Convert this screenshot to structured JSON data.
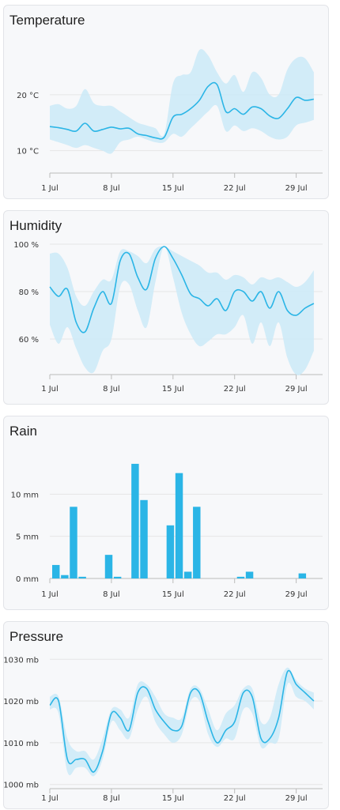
{
  "colors": {
    "line": "#2bb5e6",
    "band": "#cdeaf7",
    "bar": "#2bb5e6",
    "grid": "#e6e6e6",
    "axis": "#bbbbbb"
  },
  "x_ticks": [
    "1 Jul",
    "8 Jul",
    "15 Jul",
    "22 Jul",
    "29 Jul"
  ],
  "chart_data": [
    {
      "id": "temperature",
      "type": "area",
      "title": "Temperature",
      "ylim": [
        6,
        30
      ],
      "yticks": [
        {
          "v": 10,
          "label": "10 °C"
        },
        {
          "v": 20,
          "label": "20 °C"
        }
      ],
      "x": [
        1,
        2,
        3,
        4,
        5,
        6,
        7,
        8,
        9,
        10,
        11,
        12,
        13,
        14,
        15,
        16,
        17,
        18,
        19,
        20,
        21,
        22,
        23,
        24,
        25,
        26,
        27,
        28,
        29,
        30,
        31
      ],
      "series": [
        {
          "role": "mean",
          "values": [
            14.3,
            14.1,
            13.8,
            13.5,
            14.9,
            13.5,
            13.8,
            14.2,
            13.9,
            14.0,
            13.0,
            12.7,
            12.3,
            12.4,
            16.0,
            16.5,
            17.5,
            19.0,
            21.5,
            21.8,
            17.0,
            17.5,
            16.5,
            17.8,
            17.5,
            16.2,
            15.8,
            17.5,
            19.5,
            19.0,
            19.2
          ]
        },
        {
          "role": "high",
          "values": [
            18.0,
            18.3,
            17.5,
            18.0,
            21.0,
            18.5,
            18.0,
            18.0,
            17.0,
            16.0,
            15.0,
            14.5,
            14.0,
            13.0,
            22.0,
            23.5,
            24.0,
            28.0,
            27.0,
            24.0,
            22.0,
            23.5,
            20.5,
            24.0,
            23.0,
            20.0,
            20.0,
            24.5,
            26.5,
            26.5,
            24.0
          ]
        },
        {
          "role": "low",
          "values": [
            12.0,
            11.5,
            11.0,
            10.5,
            11.0,
            10.5,
            10.0,
            9.5,
            11.5,
            12.0,
            12.5,
            12.0,
            11.5,
            11.5,
            13.0,
            12.5,
            14.0,
            15.5,
            17.0,
            18.0,
            13.5,
            14.5,
            13.5,
            14.0,
            13.5,
            12.5,
            12.0,
            12.5,
            14.5,
            15.0,
            15.5
          ]
        }
      ]
    },
    {
      "id": "humidity",
      "type": "area",
      "title": "Humidity",
      "ylim": [
        45,
        100
      ],
      "yticks": [
        {
          "v": 60,
          "label": "60 %"
        },
        {
          "v": 80,
          "label": "80 %"
        },
        {
          "v": 100,
          "label": "100 %"
        }
      ],
      "x": [
        1,
        2,
        3,
        4,
        5,
        6,
        7,
        8,
        9,
        10,
        11,
        12,
        13,
        14,
        15,
        16,
        17,
        18,
        19,
        20,
        21,
        22,
        23,
        24,
        25,
        26,
        27,
        28,
        29,
        30,
        31
      ],
      "series": [
        {
          "role": "mean",
          "values": [
            82,
            78,
            81,
            67,
            63,
            73,
            80,
            75,
            93,
            96,
            86,
            81,
            94,
            99,
            94,
            87,
            79,
            77,
            74,
            77,
            72,
            80,
            80,
            76,
            80,
            73,
            80,
            72,
            70,
            73,
            75
          ]
        },
        {
          "role": "high",
          "values": [
            96,
            96,
            90,
            78,
            74,
            80,
            85,
            85,
            97,
            97,
            95,
            92,
            98,
            99,
            97,
            95,
            93,
            91,
            88,
            88,
            85,
            87,
            86,
            83,
            86,
            85,
            86,
            84,
            82,
            84,
            89
          ]
        },
        {
          "role": "low",
          "values": [
            66,
            58,
            65,
            56,
            48,
            46,
            55,
            60,
            82,
            83,
            72,
            65,
            84,
            99,
            86,
            71,
            62,
            57,
            59,
            62,
            62,
            65,
            70,
            58,
            67,
            57,
            67,
            52,
            45,
            47,
            55
          ]
        }
      ]
    },
    {
      "id": "rain",
      "type": "bar",
      "title": "Rain",
      "ylim": [
        0,
        15
      ],
      "yticks": [
        {
          "v": 0,
          "label": "0 mm"
        },
        {
          "v": 5,
          "label": "5 mm"
        },
        {
          "v": 10,
          "label": "10 mm"
        }
      ],
      "x": [
        1,
        2,
        3,
        4,
        5,
        6,
        7,
        8,
        9,
        10,
        11,
        12,
        13,
        14,
        15,
        16,
        17,
        18,
        19,
        20,
        21,
        22,
        23,
        24,
        25,
        26,
        27,
        28,
        29,
        30,
        31
      ],
      "values": [
        1.6,
        0.4,
        8.5,
        0.2,
        0,
        0,
        2.8,
        0.2,
        0,
        13.6,
        9.3,
        0,
        0,
        6.3,
        12.5,
        0.8,
        8.5,
        0,
        0,
        0,
        0,
        0.2,
        0.8,
        0,
        0,
        0,
        0,
        0,
        0.6,
        0,
        0
      ]
    },
    {
      "id": "pressure",
      "type": "area",
      "title": "Pressure",
      "ylim": [
        999,
        1031
      ],
      "yticks": [
        {
          "v": 1000,
          "label": "1000 mb"
        },
        {
          "v": 1010,
          "label": "1010 mb"
        },
        {
          "v": 1020,
          "label": "1020 mb"
        },
        {
          "v": 1030,
          "label": "1030 mb"
        }
      ],
      "x": [
        1,
        2,
        3,
        4,
        5,
        6,
        7,
        8,
        9,
        10,
        11,
        12,
        13,
        14,
        15,
        16,
        17,
        18,
        19,
        20,
        21,
        22,
        23,
        24,
        25,
        26,
        27,
        28,
        29,
        30,
        31
      ],
      "series": [
        {
          "role": "mean",
          "values": [
            1019,
            1020,
            1006,
            1006,
            1006,
            1003,
            1008,
            1017,
            1016,
            1013,
            1022,
            1023,
            1018,
            1015,
            1013,
            1014,
            1022,
            1022,
            1015,
            1010,
            1013,
            1015,
            1022,
            1021,
            1011,
            1011,
            1016,
            1027,
            1024,
            1022,
            1020
          ]
        },
        {
          "role": "high",
          "values": [
            1021,
            1021,
            1011,
            1008,
            1008,
            1006,
            1011,
            1018,
            1018,
            1016,
            1024,
            1024,
            1021,
            1017,
            1016,
            1016,
            1023,
            1023,
            1018,
            1013,
            1017,
            1019,
            1023,
            1023,
            1015,
            1016,
            1024,
            1028,
            1025,
            1023,
            1022
          ]
        },
        {
          "role": "low",
          "values": [
            1018,
            1017,
            1003,
            1004,
            1004,
            1002,
            1006,
            1015,
            1013,
            1011,
            1018,
            1021,
            1015,
            1012,
            1010,
            1012,
            1020,
            1020,
            1012,
            1009,
            1011,
            1011,
            1018,
            1017,
            1009,
            1010,
            1011,
            1024,
            1021,
            1020,
            1018
          ]
        }
      ]
    }
  ]
}
